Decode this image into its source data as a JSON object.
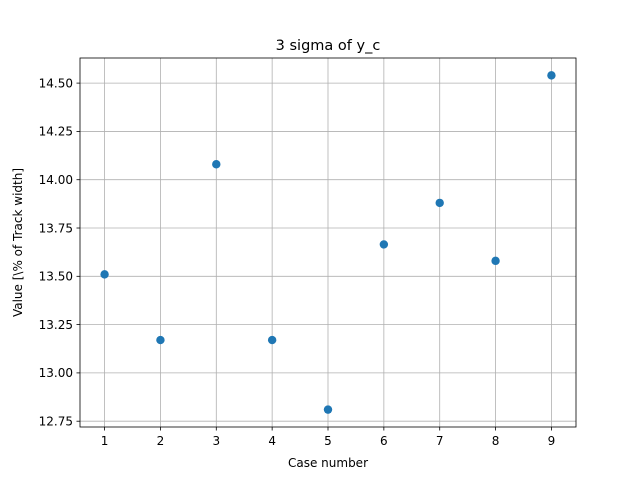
{
  "chart_data": {
    "type": "scatter",
    "title": "3 sigma of y_c",
    "xlabel": "Case number",
    "ylabel": "Value [\\% of Track width]",
    "x": [
      1,
      2,
      3,
      4,
      5,
      6,
      7,
      8,
      9
    ],
    "y": [
      13.51,
      13.17,
      14.08,
      13.17,
      12.81,
      13.665,
      13.88,
      13.58,
      14.54
    ],
    "xlim": [
      0.56,
      9.44
    ],
    "ylim": [
      12.72,
      14.63
    ],
    "xticks": [
      1,
      2,
      3,
      4,
      5,
      6,
      7,
      8,
      9
    ],
    "yticks": [
      12.75,
      13.0,
      13.25,
      13.5,
      13.75,
      14.0,
      14.25,
      14.5
    ],
    "ytick_labels": [
      "12.75",
      "13.00",
      "13.25",
      "13.50",
      "13.75",
      "14.00",
      "14.25",
      "14.50"
    ],
    "grid": true,
    "marker_color": "#1f77b4"
  }
}
